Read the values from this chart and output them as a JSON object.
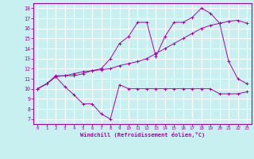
{
  "xlabel": "Windchill (Refroidissement éolien,°C)",
  "bg_color": "#c8f0f0",
  "line_color": "#aa00aa",
  "grid_color": "#ffffff",
  "xlim": [
    -0.5,
    23.5
  ],
  "ylim": [
    6.5,
    18.5
  ],
  "xticks": [
    0,
    1,
    2,
    3,
    4,
    5,
    6,
    7,
    8,
    9,
    10,
    11,
    12,
    13,
    14,
    15,
    16,
    17,
    18,
    19,
    20,
    21,
    22,
    23
  ],
  "yticks": [
    7,
    8,
    9,
    10,
    11,
    12,
    13,
    14,
    15,
    16,
    17,
    18
  ],
  "line1_x": [
    0,
    1,
    2,
    3,
    4,
    5,
    6,
    7,
    8,
    9,
    10,
    11,
    12,
    13,
    14,
    15,
    16,
    17,
    18,
    19,
    20,
    21,
    22,
    23
  ],
  "line1_y": [
    10.0,
    10.5,
    11.2,
    10.2,
    9.4,
    8.5,
    8.5,
    7.5,
    7.0,
    10.4,
    10.0,
    10.0,
    10.0,
    10.0,
    10.0,
    10.0,
    10.0,
    10.0,
    10.0,
    10.0,
    9.5,
    9.5,
    9.5,
    9.7
  ],
  "line2_x": [
    0,
    1,
    2,
    3,
    4,
    5,
    6,
    7,
    8,
    9,
    10,
    11,
    12,
    13,
    14,
    15,
    16,
    17,
    18,
    19,
    20,
    21,
    22,
    23
  ],
  "line2_y": [
    10.0,
    10.5,
    11.3,
    11.3,
    11.5,
    11.7,
    11.8,
    11.9,
    12.0,
    12.3,
    12.5,
    12.7,
    13.0,
    13.5,
    14.0,
    14.5,
    15.0,
    15.5,
    16.0,
    16.3,
    16.5,
    16.7,
    16.8,
    16.5
  ],
  "line3_x": [
    0,
    1,
    2,
    3,
    4,
    5,
    6,
    7,
    8,
    9,
    10,
    11,
    12,
    13,
    14,
    15,
    16,
    17,
    18,
    19,
    20,
    21,
    22,
    23
  ],
  "line3_y": [
    10.0,
    10.5,
    11.2,
    11.3,
    11.3,
    11.5,
    11.8,
    12.0,
    13.0,
    14.5,
    15.2,
    16.6,
    16.6,
    13.2,
    15.2,
    16.6,
    16.6,
    17.1,
    18.0,
    17.5,
    16.5,
    12.7,
    11.0,
    10.5
  ]
}
